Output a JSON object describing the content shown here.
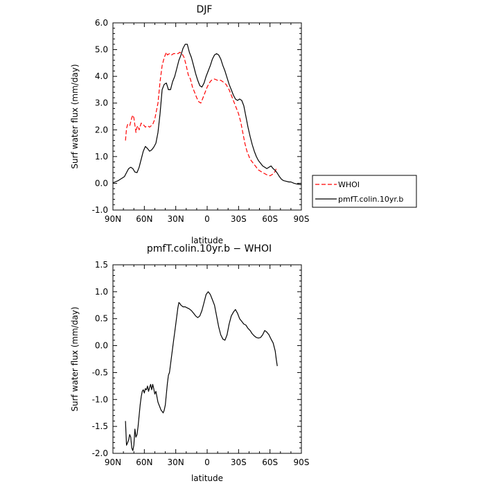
{
  "chart_data": [
    {
      "type": "line",
      "title": "DJF",
      "xlabel": "latitude",
      "ylabel": "Surf water flux (mm/day)",
      "xlim": [
        90,
        -90
      ],
      "ylim": [
        -1.0,
        6.0
      ],
      "x_ticks": [
        90,
        60,
        30,
        0,
        -30,
        -60,
        -90
      ],
      "x_tick_labels": [
        "90N",
        "60N",
        "30N",
        "0",
        "30S",
        "60S",
        "90S"
      ],
      "y_ticks": [
        -1.0,
        0.0,
        1.0,
        2.0,
        3.0,
        4.0,
        5.0,
        6.0
      ],
      "y_tick_labels": [
        "-1.0",
        "0.0",
        "1.0",
        "2.0",
        "3.0",
        "4.0",
        "5.0",
        "6.0"
      ],
      "legend_placement": "outside-right",
      "series": [
        {
          "name": "WHOI",
          "color": "#ff0000",
          "dash": true,
          "points": [
            [
              78,
              1.6
            ],
            [
              77,
              2.05
            ],
            [
              76,
              2.2
            ],
            [
              74,
              2.15
            ],
            [
              72,
              2.45
            ],
            [
              71,
              2.55
            ],
            [
              70,
              2.45
            ],
            [
              68,
              1.9
            ],
            [
              67,
              2.1
            ],
            [
              66,
              2.15
            ],
            [
              65,
              2.0
            ],
            [
              63,
              2.25
            ],
            [
              61,
              2.2
            ],
            [
              59,
              2.1
            ],
            [
              57,
              2.15
            ],
            [
              55,
              2.1
            ],
            [
              52,
              2.2
            ],
            [
              50,
              2.4
            ],
            [
              47,
              3.0
            ],
            [
              45,
              3.8
            ],
            [
              43,
              4.4
            ],
            [
              41,
              4.7
            ],
            [
              39,
              4.9
            ],
            [
              38,
              4.8
            ],
            [
              36,
              4.85
            ],
            [
              34,
              4.8
            ],
            [
              32,
              4.85
            ],
            [
              30,
              4.85
            ],
            [
              28,
              4.85
            ],
            [
              26,
              4.9
            ],
            [
              24,
              4.85
            ],
            [
              22,
              4.7
            ],
            [
              20,
              4.4
            ],
            [
              18,
              4.05
            ],
            [
              16,
              3.9
            ],
            [
              14,
              3.6
            ],
            [
              12,
              3.4
            ],
            [
              10,
              3.2
            ],
            [
              8,
              3.05
            ],
            [
              6,
              3.0
            ],
            [
              4,
              3.2
            ],
            [
              2,
              3.4
            ],
            [
              0,
              3.6
            ],
            [
              -2,
              3.75
            ],
            [
              -4,
              3.85
            ],
            [
              -7,
              3.9
            ],
            [
              -10,
              3.85
            ],
            [
              -13,
              3.85
            ],
            [
              -15,
              3.8
            ],
            [
              -18,
              3.7
            ],
            [
              -21,
              3.5
            ],
            [
              -24,
              3.2
            ],
            [
              -27,
              2.9
            ],
            [
              -30,
              2.6
            ],
            [
              -32,
              2.3
            ],
            [
              -34,
              1.9
            ],
            [
              -36,
              1.5
            ],
            [
              -38,
              1.2
            ],
            [
              -41,
              0.9
            ],
            [
              -45,
              0.7
            ],
            [
              -49,
              0.5
            ],
            [
              -53,
              0.4
            ],
            [
              -57,
              0.32
            ],
            [
              -60,
              0.28
            ],
            [
              -63,
              0.35
            ],
            [
              -65,
              0.45
            ],
            [
              -66,
              0.55
            ]
          ]
        },
        {
          "name": "pmfT.colin.10yr.b",
          "color": "#000000",
          "dash": false,
          "points": [
            [
              90,
              0.02
            ],
            [
              88,
              0.05
            ],
            [
              85,
              0.1
            ],
            [
              83,
              0.15
            ],
            [
              81,
              0.2
            ],
            [
              79,
              0.25
            ],
            [
              77,
              0.4
            ],
            [
              75,
              0.55
            ],
            [
              73,
              0.6
            ],
            [
              71,
              0.55
            ],
            [
              69,
              0.42
            ],
            [
              67,
              0.4
            ],
            [
              65,
              0.6
            ],
            [
              63,
              0.9
            ],
            [
              61,
              1.2
            ],
            [
              59,
              1.38
            ],
            [
              57,
              1.3
            ],
            [
              55,
              1.2
            ],
            [
              53,
              1.25
            ],
            [
              51,
              1.35
            ],
            [
              49,
              1.5
            ],
            [
              47,
              1.9
            ],
            [
              45,
              2.6
            ],
            [
              43,
              3.5
            ],
            [
              41,
              3.7
            ],
            [
              39,
              3.75
            ],
            [
              37,
              3.5
            ],
            [
              35,
              3.5
            ],
            [
              33,
              3.8
            ],
            [
              31,
              4.0
            ],
            [
              29,
              4.3
            ],
            [
              27,
              4.6
            ],
            [
              25,
              4.8
            ],
            [
              23,
              5.05
            ],
            [
              21,
              5.2
            ],
            [
              19,
              5.2
            ],
            [
              17,
              4.9
            ],
            [
              15,
              4.7
            ],
            [
              13,
              4.4
            ],
            [
              11,
              4.1
            ],
            [
              9,
              3.85
            ],
            [
              7,
              3.65
            ],
            [
              5,
              3.6
            ],
            [
              3,
              3.75
            ],
            [
              1,
              4.0
            ],
            [
              -1,
              4.2
            ],
            [
              -3,
              4.4
            ],
            [
              -5,
              4.65
            ],
            [
              -7,
              4.8
            ],
            [
              -9,
              4.85
            ],
            [
              -11,
              4.8
            ],
            [
              -13,
              4.65
            ],
            [
              -15,
              4.4
            ],
            [
              -17,
              4.2
            ],
            [
              -19,
              3.95
            ],
            [
              -21,
              3.7
            ],
            [
              -23,
              3.5
            ],
            [
              -25,
              3.3
            ],
            [
              -27,
              3.15
            ],
            [
              -29,
              3.1
            ],
            [
              -31,
              3.15
            ],
            [
              -33,
              3.1
            ],
            [
              -35,
              2.9
            ],
            [
              -37,
              2.5
            ],
            [
              -39,
              2.1
            ],
            [
              -41,
              1.75
            ],
            [
              -43,
              1.45
            ],
            [
              -45,
              1.2
            ],
            [
              -47,
              1.0
            ],
            [
              -49,
              0.85
            ],
            [
              -51,
              0.75
            ],
            [
              -53,
              0.65
            ],
            [
              -55,
              0.6
            ],
            [
              -57,
              0.55
            ],
            [
              -59,
              0.6
            ],
            [
              -61,
              0.65
            ],
            [
              -63,
              0.55
            ],
            [
              -65,
              0.48
            ],
            [
              -67,
              0.38
            ],
            [
              -69,
              0.25
            ],
            [
              -71,
              0.15
            ],
            [
              -73,
              0.1
            ],
            [
              -75,
              0.08
            ],
            [
              -78,
              0.05
            ],
            [
              -80,
              0.05
            ],
            [
              -83,
              0.0
            ],
            [
              -86,
              -0.03
            ],
            [
              -90,
              -0.05
            ]
          ]
        }
      ]
    },
    {
      "type": "line",
      "title": "pmfT.colin.10yr.b − WHOI",
      "xlabel": "latitude",
      "ylabel": "Surf water flux (mm/day)",
      "xlim": [
        90,
        -90
      ],
      "ylim": [
        -2.0,
        1.5
      ],
      "x_ticks": [
        90,
        60,
        30,
        0,
        -30,
        -60,
        -90
      ],
      "x_tick_labels": [
        "90N",
        "60N",
        "30N",
        "0",
        "30S",
        "60S",
        "90S"
      ],
      "y_ticks": [
        -2.0,
        -1.5,
        -1.0,
        -0.5,
        0.0,
        0.5,
        1.0,
        1.5
      ],
      "y_tick_labels": [
        "-2.0",
        "-1.5",
        "-1.0",
        "-0.5",
        "0.0",
        "0.5",
        "1.0",
        "1.5"
      ],
      "series": [
        {
          "color": "#000000",
          "dash": false,
          "points": [
            [
              78,
              -1.4
            ],
            [
              77,
              -1.85
            ],
            [
              76,
              -1.8
            ],
            [
              75,
              -1.75
            ],
            [
              74,
              -1.65
            ],
            [
              73,
              -1.7
            ],
            [
              72,
              -1.9
            ],
            [
              71,
              -1.95
            ],
            [
              70,
              -1.85
            ],
            [
              69,
              -1.55
            ],
            [
              68,
              -1.7
            ],
            [
              67,
              -1.65
            ],
            [
              66,
              -1.5
            ],
            [
              65,
              -1.3
            ],
            [
              64,
              -1.1
            ],
            [
              63,
              -0.95
            ],
            [
              62,
              -0.85
            ],
            [
              61,
              -0.82
            ],
            [
              60,
              -0.88
            ],
            [
              59,
              -0.8
            ],
            [
              58,
              -0.82
            ],
            [
              57,
              -0.75
            ],
            [
              56,
              -0.85
            ],
            [
              55,
              -0.78
            ],
            [
              54,
              -0.72
            ],
            [
              53,
              -0.82
            ],
            [
              52,
              -0.72
            ],
            [
              51,
              -0.8
            ],
            [
              50,
              -0.9
            ],
            [
              49,
              -0.85
            ],
            [
              48,
              -0.95
            ],
            [
              47,
              -1.05
            ],
            [
              46,
              -1.1
            ],
            [
              45,
              -1.15
            ],
            [
              44,
              -1.2
            ],
            [
              43,
              -1.22
            ],
            [
              42,
              -1.25
            ],
            [
              41,
              -1.2
            ],
            [
              40,
              -1.1
            ],
            [
              39,
              -0.9
            ],
            [
              38,
              -0.7
            ],
            [
              37,
              -0.55
            ],
            [
              36,
              -0.5
            ],
            [
              35,
              -0.35
            ],
            [
              34,
              -0.2
            ],
            [
              33,
              -0.05
            ],
            [
              32,
              0.1
            ],
            [
              31,
              0.25
            ],
            [
              30,
              0.4
            ],
            [
              29,
              0.55
            ],
            [
              28,
              0.7
            ],
            [
              27,
              0.8
            ],
            [
              26,
              0.78
            ],
            [
              25,
              0.75
            ],
            [
              23,
              0.72
            ],
            [
              21,
              0.72
            ],
            [
              19,
              0.7
            ],
            [
              17,
              0.68
            ],
            [
              15,
              0.65
            ],
            [
              13,
              0.6
            ],
            [
              11,
              0.55
            ],
            [
              9,
              0.52
            ],
            [
              7,
              0.55
            ],
            [
              5,
              0.65
            ],
            [
              3,
              0.8
            ],
            [
              1,
              0.95
            ],
            [
              -1,
              1.0
            ],
            [
              -3,
              0.95
            ],
            [
              -5,
              0.85
            ],
            [
              -7,
              0.75
            ],
            [
              -9,
              0.55
            ],
            [
              -11,
              0.35
            ],
            [
              -13,
              0.2
            ],
            [
              -15,
              0.12
            ],
            [
              -17,
              0.1
            ],
            [
              -19,
              0.2
            ],
            [
              -21,
              0.4
            ],
            [
              -23,
              0.55
            ],
            [
              -25,
              0.62
            ],
            [
              -27,
              0.67
            ],
            [
              -29,
              0.6
            ],
            [
              -31,
              0.5
            ],
            [
              -33,
              0.45
            ],
            [
              -35,
              0.4
            ],
            [
              -37,
              0.38
            ],
            [
              -39,
              0.32
            ],
            [
              -41,
              0.28
            ],
            [
              -43,
              0.22
            ],
            [
              -45,
              0.18
            ],
            [
              -47,
              0.15
            ],
            [
              -49,
              0.14
            ],
            [
              -51,
              0.15
            ],
            [
              -53,
              0.2
            ],
            [
              -55,
              0.28
            ],
            [
              -57,
              0.25
            ],
            [
              -59,
              0.2
            ],
            [
              -61,
              0.12
            ],
            [
              -63,
              0.05
            ],
            [
              -65,
              -0.1
            ],
            [
              -66,
              -0.25
            ],
            [
              -67,
              -0.38
            ]
          ]
        }
      ]
    }
  ]
}
